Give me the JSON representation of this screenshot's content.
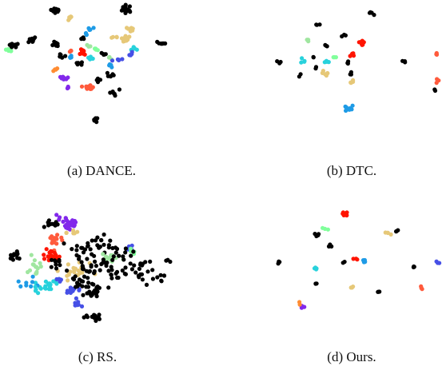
{
  "chart_data": [
    {
      "type": "scatter",
      "caption": "(a) DANCE.",
      "colors": {
        "black": "#000000",
        "mint": "#80ff9b",
        "tan": "#e6c878",
        "cyan": "#28d2dc",
        "sky": "#1e9be6",
        "blue": "#4650e6",
        "violet": "#8228eb",
        "red": "#ff1400",
        "coral": "#ff5a3c",
        "orange": "#ff8c32",
        "lime": "#a0e6a0"
      },
      "clusters": [
        {
          "color": "black",
          "x": 0.27,
          "y": 0.05,
          "n": 14,
          "s": 0.013
        },
        {
          "color": "black",
          "x": 0.64,
          "y": 0.04,
          "n": 16,
          "s": 0.015
        },
        {
          "color": "black",
          "x": 0.05,
          "y": 0.34,
          "n": 10,
          "s": 0.012
        },
        {
          "color": "mint",
          "x": 0.02,
          "y": 0.38,
          "n": 5,
          "s": 0.008
        },
        {
          "color": "black",
          "x": 0.15,
          "y": 0.3,
          "n": 10,
          "s": 0.012
        },
        {
          "color": "black",
          "x": 0.26,
          "y": 0.33,
          "n": 10,
          "s": 0.012
        },
        {
          "color": "black",
          "x": 0.3,
          "y": 0.43,
          "n": 6,
          "s": 0.01
        },
        {
          "color": "tan",
          "x": 0.34,
          "y": 0.11,
          "n": 5,
          "s": 0.008
        },
        {
          "color": "sky",
          "x": 0.45,
          "y": 0.2,
          "n": 4,
          "s": 0.008
        },
        {
          "color": "sky",
          "x": 0.43,
          "y": 0.25,
          "n": 4,
          "s": 0.008
        },
        {
          "color": "black",
          "x": 0.4,
          "y": 0.28,
          "n": 5,
          "s": 0.01
        },
        {
          "color": "tan",
          "x": 0.64,
          "y": 0.28,
          "n": 12,
          "s": 0.014
        },
        {
          "color": "tan",
          "x": 0.66,
          "y": 0.21,
          "n": 6,
          "s": 0.01
        },
        {
          "color": "cyan",
          "x": 0.68,
          "y": 0.37,
          "n": 6,
          "s": 0.01
        },
        {
          "color": "black",
          "x": 0.82,
          "y": 0.33,
          "n": 8,
          "s": 0.012
        },
        {
          "color": "tan",
          "x": 0.58,
          "y": 0.27,
          "n": 4,
          "s": 0.008
        },
        {
          "color": "red",
          "x": 0.4,
          "y": 0.4,
          "n": 12,
          "s": 0.014
        },
        {
          "color": "cyan",
          "x": 0.45,
          "y": 0.45,
          "n": 5,
          "s": 0.01
        },
        {
          "color": "mint",
          "x": 0.48,
          "y": 0.38,
          "n": 4,
          "s": 0.008
        },
        {
          "color": "lime",
          "x": 0.44,
          "y": 0.35,
          "n": 4,
          "s": 0.008
        },
        {
          "color": "coral",
          "x": 0.35,
          "y": 0.39,
          "n": 3,
          "s": 0.008
        },
        {
          "color": "sky",
          "x": 0.35,
          "y": 0.44,
          "n": 4,
          "s": 0.008
        },
        {
          "color": "black",
          "x": 0.4,
          "y": 0.5,
          "n": 5,
          "s": 0.01
        },
        {
          "color": "black",
          "x": 0.52,
          "y": 0.42,
          "n": 5,
          "s": 0.01
        },
        {
          "color": "lime",
          "x": 0.55,
          "y": 0.45,
          "n": 4,
          "s": 0.008
        },
        {
          "color": "blue",
          "x": 0.6,
          "y": 0.46,
          "n": 5,
          "s": 0.01
        },
        {
          "color": "blue",
          "x": 0.66,
          "y": 0.42,
          "n": 5,
          "s": 0.01
        },
        {
          "color": "sky",
          "x": 0.56,
          "y": 0.52,
          "n": 4,
          "s": 0.008
        },
        {
          "color": "black",
          "x": 0.55,
          "y": 0.6,
          "n": 6,
          "s": 0.01
        },
        {
          "color": "black",
          "x": 0.57,
          "y": 0.74,
          "n": 6,
          "s": 0.012
        },
        {
          "color": "black",
          "x": 0.49,
          "y": 0.63,
          "n": 5,
          "s": 0.01
        },
        {
          "color": "orange",
          "x": 0.27,
          "y": 0.55,
          "n": 4,
          "s": 0.008
        },
        {
          "color": "violet",
          "x": 0.31,
          "y": 0.62,
          "n": 8,
          "s": 0.012
        },
        {
          "color": "violet",
          "x": 0.33,
          "y": 0.7,
          "n": 3,
          "s": 0.008
        },
        {
          "color": "coral",
          "x": 0.43,
          "y": 0.7,
          "n": 10,
          "s": 0.012
        },
        {
          "color": "black",
          "x": 0.48,
          "y": 0.97,
          "n": 8,
          "s": 0.012
        }
      ]
    },
    {
      "type": "scatter",
      "caption": "(b) DTC.",
      "colors": {
        "black": "#000000",
        "mint": "#80ff9b",
        "tan": "#e6c878",
        "cyan": "#28d2dc",
        "sky": "#1e9be6",
        "red": "#ff1400",
        "coral": "#ff5a3c",
        "lime": "#a0e6a0"
      },
      "clusters": [
        {
          "color": "black",
          "x": 0.58,
          "y": 0.02,
          "n": 4,
          "s": 0.008
        },
        {
          "color": "black",
          "x": 0.26,
          "y": 0.13,
          "n": 3,
          "s": 0.008
        },
        {
          "color": "black",
          "x": 0.42,
          "y": 0.23,
          "n": 3,
          "s": 0.006
        },
        {
          "color": "lime",
          "x": 0.2,
          "y": 0.27,
          "n": 3,
          "s": 0.008
        },
        {
          "color": "black",
          "x": 0.3,
          "y": 0.32,
          "n": 3,
          "s": 0.008
        },
        {
          "color": "red",
          "x": 0.53,
          "y": 0.29,
          "n": 8,
          "s": 0.012
        },
        {
          "color": "black",
          "x": 0.02,
          "y": 0.46,
          "n": 3,
          "s": 0.008
        },
        {
          "color": "cyan",
          "x": 0.17,
          "y": 0.46,
          "n": 4,
          "s": 0.008
        },
        {
          "color": "black",
          "x": 0.23,
          "y": 0.42,
          "n": 2,
          "s": 0.006
        },
        {
          "color": "cyan",
          "x": 0.31,
          "y": 0.47,
          "n": 5,
          "s": 0.01
        },
        {
          "color": "mint",
          "x": 0.36,
          "y": 0.42,
          "n": 3,
          "s": 0.008
        },
        {
          "color": "red",
          "x": 0.47,
          "y": 0.4,
          "n": 5,
          "s": 0.01
        },
        {
          "color": "black",
          "x": 0.44,
          "y": 0.48,
          "n": 3,
          "s": 0.008
        },
        {
          "color": "black",
          "x": 0.25,
          "y": 0.53,
          "n": 2,
          "s": 0.006
        },
        {
          "color": "tan",
          "x": 0.3,
          "y": 0.57,
          "n": 6,
          "s": 0.01
        },
        {
          "color": "black",
          "x": 0.46,
          "y": 0.57,
          "n": 3,
          "s": 0.008
        },
        {
          "color": "black",
          "x": 0.15,
          "y": 0.59,
          "n": 2,
          "s": 0.006
        },
        {
          "color": "tan",
          "x": 0.46,
          "y": 0.65,
          "n": 5,
          "s": 0.01
        },
        {
          "color": "black",
          "x": 0.78,
          "y": 0.46,
          "n": 3,
          "s": 0.008
        },
        {
          "color": "coral",
          "x": 0.97,
          "y": 0.4,
          "n": 3,
          "s": 0.008
        },
        {
          "color": "coral",
          "x": 0.97,
          "y": 0.64,
          "n": 3,
          "s": 0.008
        },
        {
          "color": "black",
          "x": 0.96,
          "y": 0.72,
          "n": 2,
          "s": 0.006
        },
        {
          "color": "sky",
          "x": 0.44,
          "y": 0.9,
          "n": 8,
          "s": 0.012
        }
      ]
    },
    {
      "type": "scatter",
      "caption": "(c) RS.",
      "colors": {
        "black": "#000000",
        "mint": "#80ff9b",
        "tan": "#e6c878",
        "cyan": "#28d2dc",
        "sky": "#1e9be6",
        "blue": "#4650e6",
        "violet": "#8228eb",
        "red": "#ff1400",
        "coral": "#ff5a3c",
        "lime": "#a0e6a0"
      },
      "clusters": [
        {
          "color": "violet",
          "x": 0.35,
          "y": 0.1,
          "n": 24,
          "s": 0.035
        },
        {
          "color": "black",
          "x": 0.25,
          "y": 0.12,
          "n": 10,
          "s": 0.03
        },
        {
          "color": "tan",
          "x": 0.38,
          "y": 0.2,
          "n": 6,
          "s": 0.02
        },
        {
          "color": "coral",
          "x": 0.28,
          "y": 0.26,
          "n": 16,
          "s": 0.03
        },
        {
          "color": "black",
          "x": 0.03,
          "y": 0.4,
          "n": 12,
          "s": 0.02
        },
        {
          "color": "red",
          "x": 0.25,
          "y": 0.39,
          "n": 18,
          "s": 0.03
        },
        {
          "color": "black",
          "x": 0.43,
          "y": 0.33,
          "n": 16,
          "s": 0.04
        },
        {
          "color": "black",
          "x": 0.55,
          "y": 0.28,
          "n": 14,
          "s": 0.04
        },
        {
          "color": "blue",
          "x": 0.71,
          "y": 0.33,
          "n": 5,
          "s": 0.015
        },
        {
          "color": "mint",
          "x": 0.75,
          "y": 0.38,
          "n": 4,
          "s": 0.015
        },
        {
          "color": "lime",
          "x": 0.6,
          "y": 0.42,
          "n": 14,
          "s": 0.03
        },
        {
          "color": "black",
          "x": 0.67,
          "y": 0.4,
          "n": 14,
          "s": 0.04
        },
        {
          "color": "black",
          "x": 0.78,
          "y": 0.55,
          "n": 22,
          "s": 0.05
        },
        {
          "color": "black",
          "x": 0.63,
          "y": 0.55,
          "n": 14,
          "s": 0.04
        },
        {
          "color": "lime",
          "x": 0.15,
          "y": 0.52,
          "n": 14,
          "s": 0.03
        },
        {
          "color": "tan",
          "x": 0.38,
          "y": 0.54,
          "n": 22,
          "s": 0.04
        },
        {
          "color": "black",
          "x": 0.47,
          "y": 0.52,
          "n": 24,
          "s": 0.05
        },
        {
          "color": "black",
          "x": 0.28,
          "y": 0.48,
          "n": 10,
          "s": 0.03
        },
        {
          "color": "cyan",
          "x": 0.23,
          "y": 0.65,
          "n": 18,
          "s": 0.035
        },
        {
          "color": "sky",
          "x": 0.12,
          "y": 0.65,
          "n": 8,
          "s": 0.03
        },
        {
          "color": "blue",
          "x": 0.3,
          "y": 0.62,
          "n": 6,
          "s": 0.02
        },
        {
          "color": "blue",
          "x": 0.37,
          "y": 0.72,
          "n": 14,
          "s": 0.025
        },
        {
          "color": "black",
          "x": 0.5,
          "y": 0.72,
          "n": 20,
          "s": 0.04
        },
        {
          "color": "black",
          "x": 0.42,
          "y": 0.66,
          "n": 12,
          "s": 0.03
        },
        {
          "color": "blue",
          "x": 0.4,
          "y": 0.85,
          "n": 8,
          "s": 0.02
        },
        {
          "color": "cyan",
          "x": 0.18,
          "y": 0.72,
          "n": 5,
          "s": 0.02
        },
        {
          "color": "black",
          "x": 0.9,
          "y": 0.58,
          "n": 6,
          "s": 0.03
        },
        {
          "color": "black",
          "x": 0.5,
          "y": 0.96,
          "n": 16,
          "s": 0.02
        },
        {
          "color": "black",
          "x": 0.93,
          "y": 0.46,
          "n": 3,
          "s": 0.015
        }
      ]
    },
    {
      "type": "scatter",
      "caption": "(d) Ours.",
      "colors": {
        "black": "#000000",
        "mint": "#80ff9b",
        "tan": "#e6c878",
        "cyan": "#28d2dc",
        "sky": "#1e9be6",
        "blue": "#4650e6",
        "violet": "#8228eb",
        "red": "#ff1400",
        "coral": "#ff5a3c",
        "orange": "#ff8c32",
        "lime": "#a0e6a0"
      },
      "clusters": [
        {
          "color": "red",
          "x": 0.42,
          "y": 0.03,
          "n": 8,
          "s": 0.012
        },
        {
          "color": "mint",
          "x": 0.3,
          "y": 0.17,
          "n": 3,
          "s": 0.008
        },
        {
          "color": "black",
          "x": 0.26,
          "y": 0.22,
          "n": 4,
          "s": 0.008
        },
        {
          "color": "tan",
          "x": 0.68,
          "y": 0.21,
          "n": 4,
          "s": 0.008
        },
        {
          "color": "black",
          "x": 0.74,
          "y": 0.18,
          "n": 3,
          "s": 0.008
        },
        {
          "color": "black",
          "x": 0.34,
          "y": 0.32,
          "n": 3,
          "s": 0.006
        },
        {
          "color": "black",
          "x": 0.02,
          "y": 0.48,
          "n": 4,
          "s": 0.008
        },
        {
          "color": "red",
          "x": 0.48,
          "y": 0.45,
          "n": 3,
          "s": 0.008
        },
        {
          "color": "sky",
          "x": 0.54,
          "y": 0.46,
          "n": 4,
          "s": 0.008
        },
        {
          "color": "black",
          "x": 0.41,
          "y": 0.47,
          "n": 2,
          "s": 0.006
        },
        {
          "color": "cyan",
          "x": 0.24,
          "y": 0.53,
          "n": 4,
          "s": 0.008
        },
        {
          "color": "black",
          "x": 0.83,
          "y": 0.51,
          "n": 3,
          "s": 0.008
        },
        {
          "color": "blue",
          "x": 0.98,
          "y": 0.47,
          "n": 3,
          "s": 0.008
        },
        {
          "color": "black",
          "x": 0.25,
          "y": 0.67,
          "n": 3,
          "s": 0.008
        },
        {
          "color": "tan",
          "x": 0.46,
          "y": 0.7,
          "n": 3,
          "s": 0.008
        },
        {
          "color": "black",
          "x": 0.62,
          "y": 0.75,
          "n": 3,
          "s": 0.008
        },
        {
          "color": "coral",
          "x": 0.88,
          "y": 0.7,
          "n": 3,
          "s": 0.008
        },
        {
          "color": "violet",
          "x": 0.16,
          "y": 0.88,
          "n": 4,
          "s": 0.008
        },
        {
          "color": "orange",
          "x": 0.14,
          "y": 0.85,
          "n": 2,
          "s": 0.006
        }
      ]
    }
  ]
}
